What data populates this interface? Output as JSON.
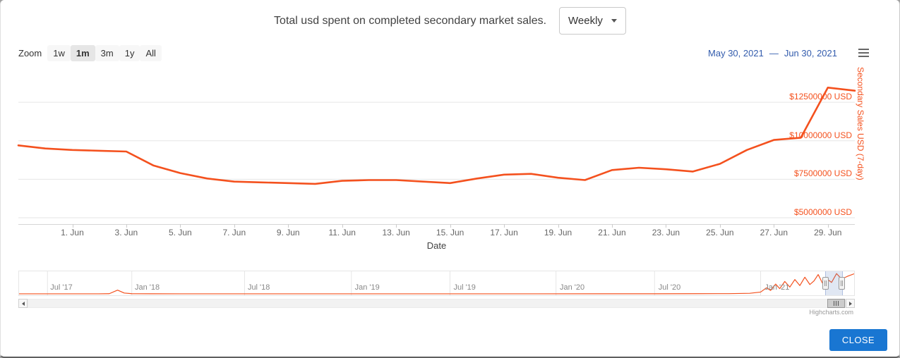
{
  "header": {
    "title": "Total usd spent on completed secondary market sales.",
    "frequency_select": {
      "value": "Weekly"
    }
  },
  "toolbar": {
    "zoom_label": "Zoom",
    "zoom_buttons": [
      {
        "label": "1w",
        "active": false
      },
      {
        "label": "1m",
        "active": true
      },
      {
        "label": "3m",
        "active": false
      },
      {
        "label": "1y",
        "active": false
      },
      {
        "label": "All",
        "active": false
      }
    ],
    "range_from": "May 30, 2021",
    "range_separator": "—",
    "range_to": "Jun 30, 2021"
  },
  "chart_data": {
    "type": "line",
    "title": "Total usd spent on completed secondary market sales.",
    "xlabel": "Date",
    "ylabel": "Secondary Sales USD (7-day)",
    "series_color": "#f4511e",
    "legend": "none",
    "grid": true,
    "y_axis": {
      "side": "right",
      "gridline_values": [
        5000000,
        7500000,
        10000000,
        12500000
      ],
      "tick_labels": [
        "$5000000 USD",
        "$7500000 USD",
        "$10000000 USD",
        "$12500000 USD"
      ],
      "label_color": "#f4511e"
    },
    "x_axis": {
      "tick_labels": [
        "1. Jun",
        "3. Jun",
        "5. Jun",
        "7. Jun",
        "9. Jun",
        "11. Jun",
        "13. Jun",
        "15. Jun",
        "17. Jun",
        "19. Jun",
        "21. Jun",
        "23. Jun",
        "25. Jun",
        "27. Jun",
        "29. Jun"
      ]
    },
    "main_series": {
      "name": "Secondary Sales USD (7-day)",
      "visible_range": [
        "May 30, 2021",
        "Jun 30, 2021"
      ],
      "dates": [
        "May 30",
        "May 31",
        "Jun 1",
        "Jun 2",
        "Jun 3",
        "Jun 4",
        "Jun 5",
        "Jun 6",
        "Jun 7",
        "Jun 8",
        "Jun 9",
        "Jun 10",
        "Jun 11",
        "Jun 12",
        "Jun 13",
        "Jun 14",
        "Jun 15",
        "Jun 16",
        "Jun 17",
        "Jun 18",
        "Jun 19",
        "Jun 20",
        "Jun 21",
        "Jun 22",
        "Jun 23",
        "Jun 24",
        "Jun 25",
        "Jun 26",
        "Jun 27",
        "Jun 28",
        "Jun 29",
        "Jun 30"
      ],
      "values": [
        9700000,
        9500000,
        9400000,
        9350000,
        9300000,
        8400000,
        7900000,
        7550000,
        7350000,
        7300000,
        7250000,
        7200000,
        7400000,
        7450000,
        7450000,
        7350000,
        7250000,
        7550000,
        7800000,
        7850000,
        7600000,
        7450000,
        8100000,
        8250000,
        8150000,
        8000000,
        8500000,
        9400000,
        10050000,
        10200000,
        13450000,
        13250000
      ]
    },
    "navigator": {
      "tick_labels": [
        "Jul '17",
        "Jan '18",
        "Jul '18",
        "Jan '19",
        "Jul '19",
        "Jan '20",
        "Jul '20",
        "Jan '21"
      ],
      "tick_positions": [
        0.034,
        0.135,
        0.27,
        0.398,
        0.516,
        0.643,
        0.761,
        0.888
      ],
      "series": [
        [
          0.0,
          30000
        ],
        [
          0.05,
          35000
        ],
        [
          0.095,
          60000
        ],
        [
          0.108,
          120000
        ],
        [
          0.118,
          2500000
        ],
        [
          0.126,
          600000
        ],
        [
          0.135,
          150000
        ],
        [
          0.16,
          70000
        ],
        [
          0.22,
          45000
        ],
        [
          0.3,
          40000
        ],
        [
          0.4,
          45000
        ],
        [
          0.5,
          50000
        ],
        [
          0.6,
          55000
        ],
        [
          0.7,
          70000
        ],
        [
          0.76,
          90000
        ],
        [
          0.81,
          130000
        ],
        [
          0.85,
          200000
        ],
        [
          0.875,
          400000
        ],
        [
          0.888,
          1200000
        ],
        [
          0.895,
          4000000
        ],
        [
          0.9,
          2300000
        ],
        [
          0.906,
          6500000
        ],
        [
          0.911,
          3500000
        ],
        [
          0.917,
          8200000
        ],
        [
          0.923,
          4500000
        ],
        [
          0.929,
          9500000
        ],
        [
          0.935,
          5500000
        ],
        [
          0.941,
          11000000
        ],
        [
          0.947,
          6200000
        ],
        [
          0.952,
          8600000
        ],
        [
          0.957,
          12800000
        ],
        [
          0.962,
          7200000
        ],
        [
          0.968,
          9600000
        ],
        [
          0.973,
          7600000
        ],
        [
          0.979,
          13400000
        ],
        [
          0.985,
          9800000
        ],
        [
          0.992,
          11600000
        ],
        [
          1.0,
          13300000
        ]
      ],
      "selection": {
        "from": 0.964,
        "to": 0.983
      }
    }
  },
  "credits": "Highcharts.com",
  "footer": {
    "close_label": "CLOSE"
  }
}
